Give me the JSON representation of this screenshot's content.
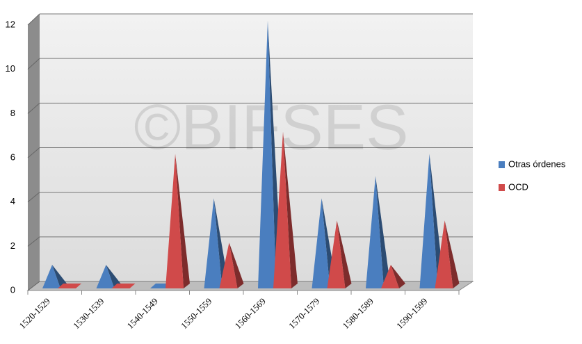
{
  "chart_data": {
    "type": "pyramid3d",
    "watermark": "©BIFSES",
    "categories": [
      "1520-1529",
      "1530-1539",
      "1540-1549",
      "1550-1559",
      "1560-1569",
      "1570-1579",
      "1580-1589",
      "1590-1599"
    ],
    "series": [
      {
        "name": "Otras órdenes",
        "color": "#4a7ebf",
        "values": [
          1,
          1,
          0,
          4,
          12,
          4,
          5,
          6
        ]
      },
      {
        "name": "OCD",
        "color": "#d04a4a",
        "values": [
          0,
          0,
          6,
          2,
          7,
          3,
          1,
          3
        ]
      }
    ],
    "ylim": [
      0,
      12
    ],
    "yticks": [
      0,
      2,
      4,
      6,
      8,
      10,
      12
    ],
    "grid": true,
    "legend": "right"
  }
}
